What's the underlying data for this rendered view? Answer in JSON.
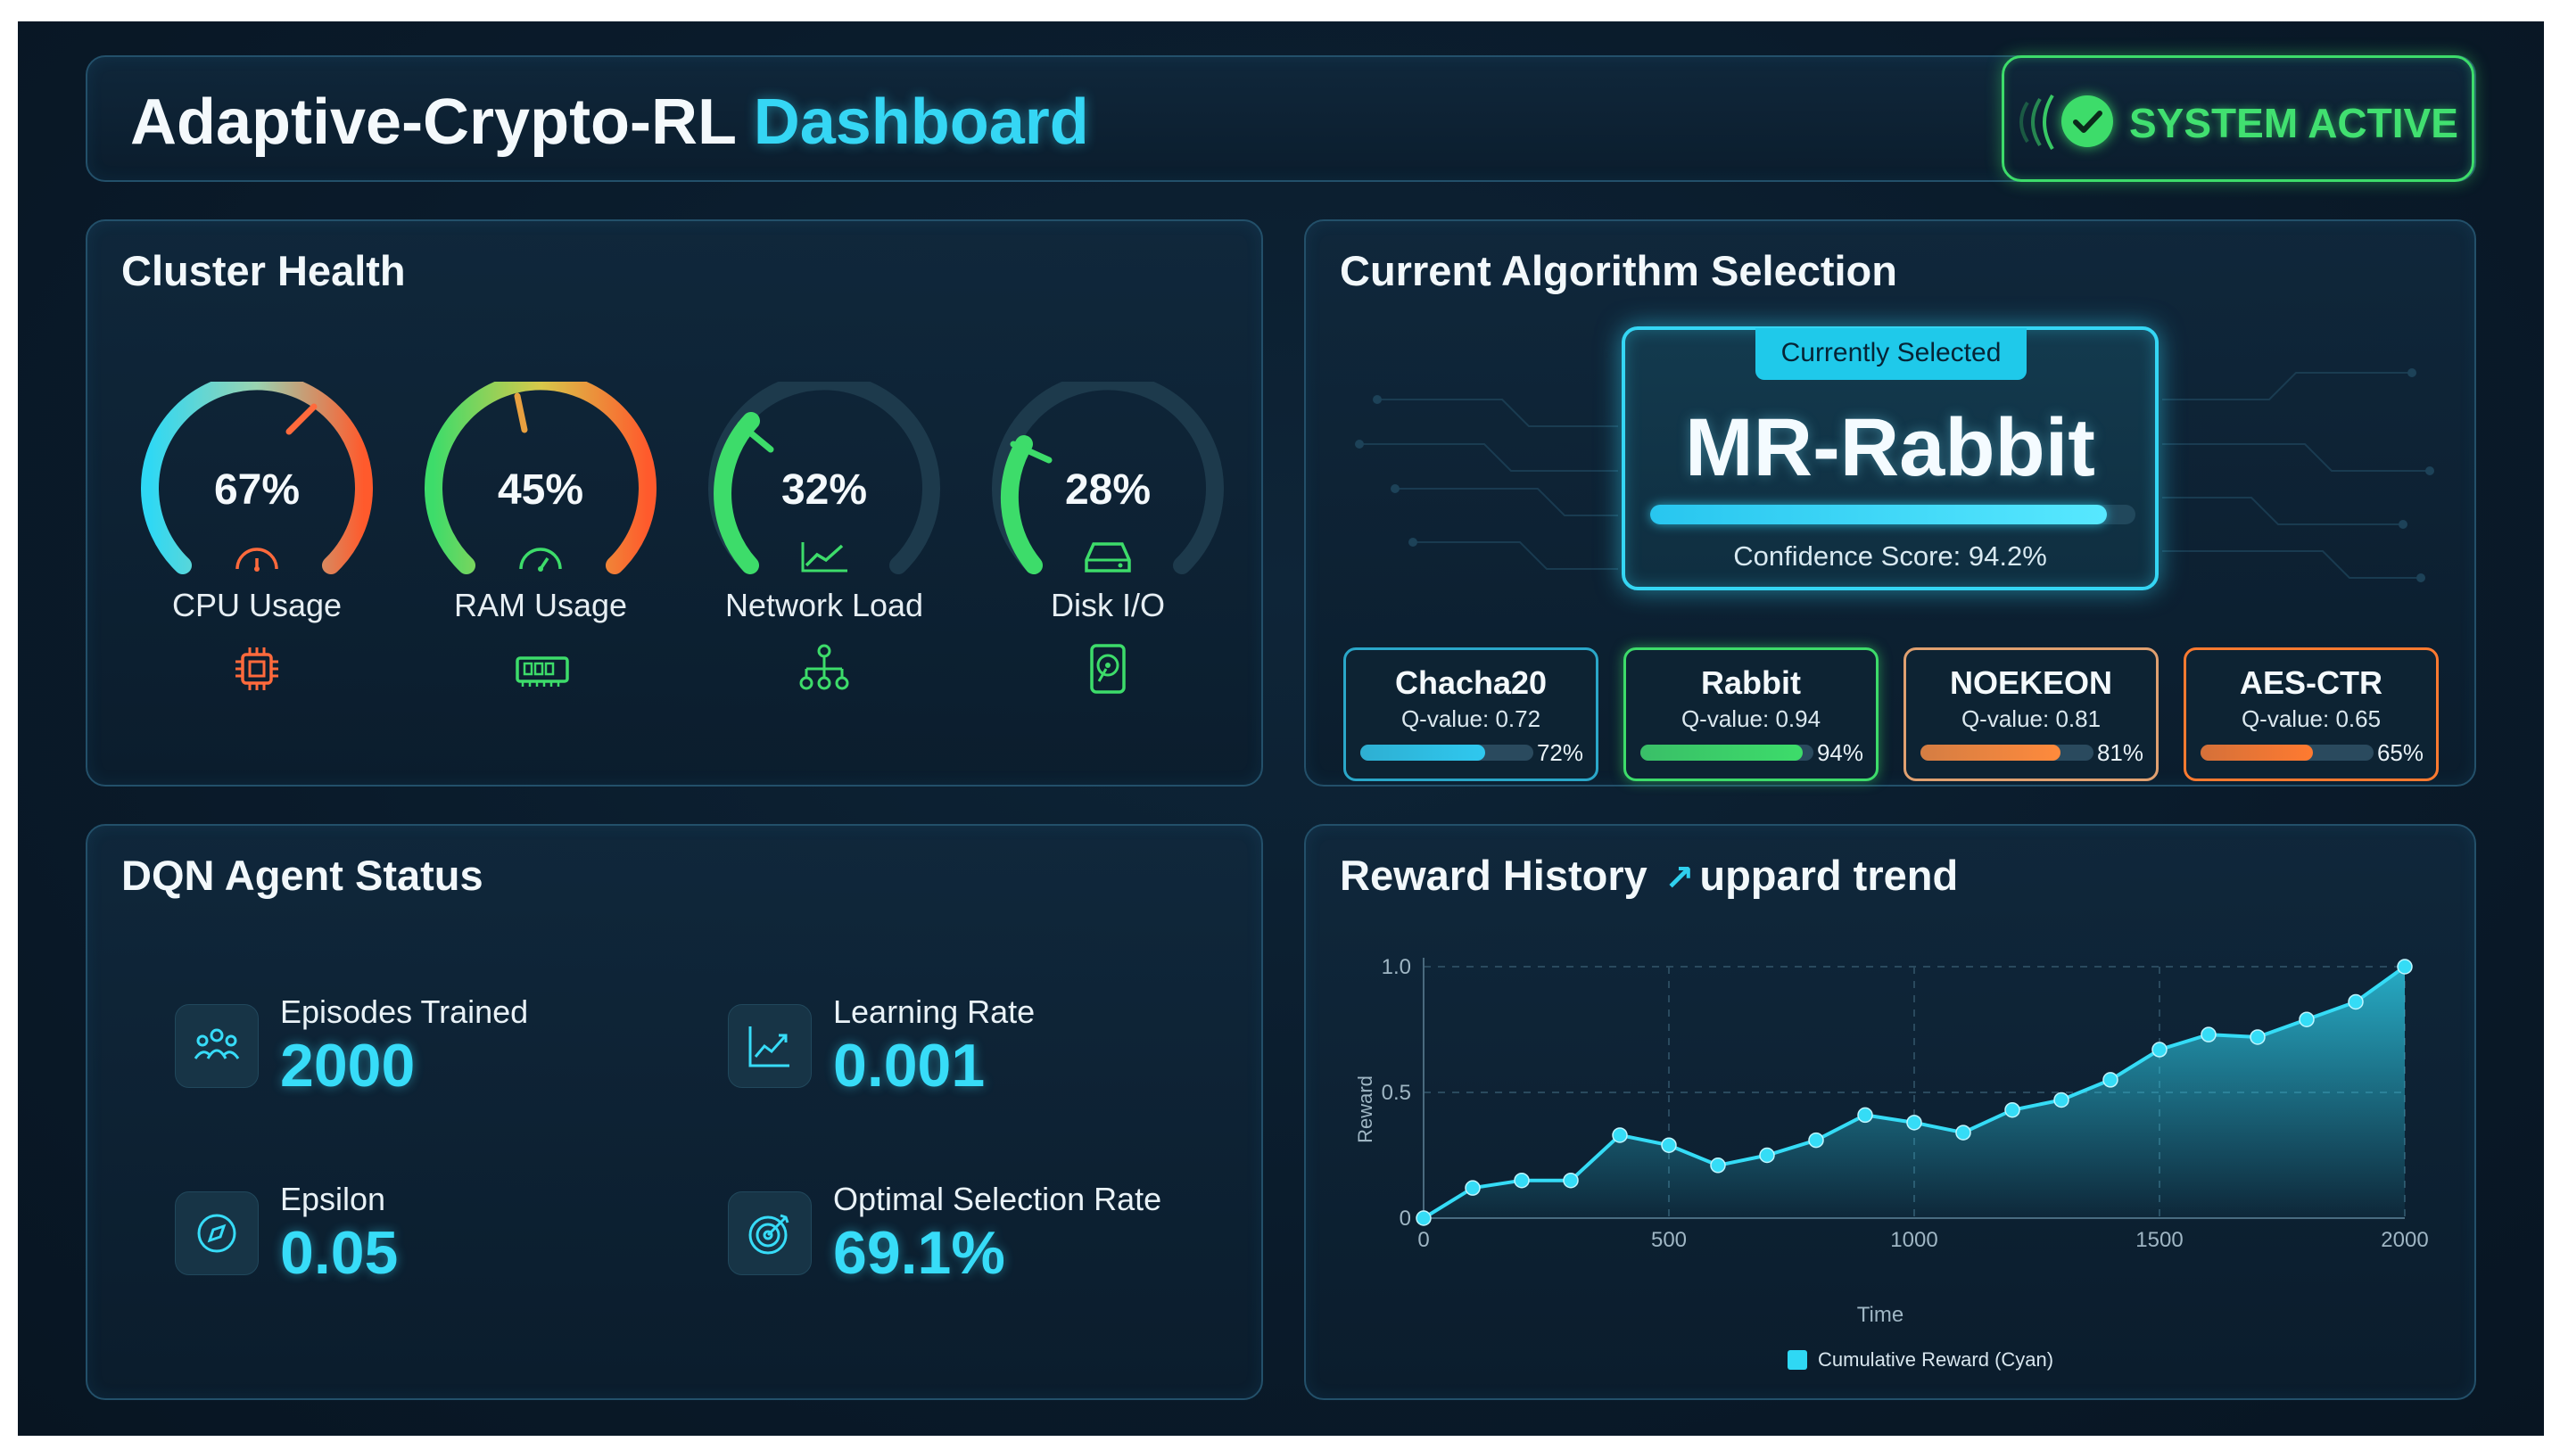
{
  "header": {
    "title_part1": "Adaptive-Crypto-RL",
    "title_part2": "Dashboard",
    "status": "SYSTEM ACTIVE",
    "status_icon": "check-circle-icon",
    "status_color": "#3ddc6a"
  },
  "cluster_health": {
    "title": "Cluster Health",
    "gauges": [
      {
        "label": "CPU Usage",
        "percent_text": "67%",
        "value": 67,
        "icon": "cpu-chip-icon",
        "color": "#ff6a3c"
      },
      {
        "label": "RAM Usage",
        "percent_text": "45%",
        "value": 45,
        "icon": "memory-module-icon",
        "color": "#3ddc6a"
      },
      {
        "label": "Network Load",
        "percent_text": "32%",
        "value": 32,
        "icon": "network-tree-icon",
        "color": "#3ddc6a"
      },
      {
        "label": "Disk I/O",
        "percent_text": "28%",
        "value": 28,
        "icon": "hard-drive-icon",
        "color": "#3ddc6a"
      }
    ]
  },
  "algorithm_selection": {
    "title": "Current Algorithm Selection",
    "selected_tag": "Currently Selected",
    "selected_name": "MR-Rabbit",
    "confidence_text": "Confidence Score: 94.2%",
    "confidence": 94.2,
    "candidates": [
      {
        "name": "Chacha20",
        "q_text": "Q-value: 0.72",
        "percent_text": "72%",
        "percent": 72,
        "color": "#2fc8ef",
        "border": "#2aa7c9"
      },
      {
        "name": "Rabbit",
        "q_text": "Q-value: 0.94",
        "percent_text": "94%",
        "percent": 94,
        "color": "#3ddc6a",
        "border": "#3ddc6a"
      },
      {
        "name": "NOEKEON",
        "q_text": "Q-value: 0.81",
        "percent_text": "81%",
        "percent": 81,
        "color": "#ff8a3c",
        "border": "#e0a070"
      },
      {
        "name": "AES-CTR",
        "q_text": "Q-value: 0.65",
        "percent_text": "65%",
        "percent": 65,
        "color": "#ff7a30",
        "border": "#ff7a30"
      }
    ]
  },
  "dqn_status": {
    "title": "DQN Agent Status",
    "metrics": [
      {
        "label": "Episodes Trained",
        "value": "2000",
        "icon": "agents-group-icon"
      },
      {
        "label": "Learning Rate",
        "value": "0.001",
        "icon": "line-chart-icon"
      },
      {
        "label": "Epsilon",
        "value": "0.05",
        "icon": "compass-icon"
      },
      {
        "label": "Optimal Selection Rate",
        "value": "69.1%",
        "icon": "target-icon"
      }
    ]
  },
  "reward_history": {
    "title": "Reward History",
    "trend_text": "uppard trend",
    "trend_icon": "arrow-up-right-icon"
  },
  "chart_data": {
    "type": "area",
    "title": "Reward History",
    "xlabel": "Time",
    "ylabel": "Reward",
    "xlim": [
      0,
      2000
    ],
    "ylim": [
      0,
      1.0
    ],
    "x_ticks": [
      0,
      500,
      1000,
      1500,
      2000
    ],
    "y_ticks": [
      0,
      0.5,
      1.0
    ],
    "y_tick_labels": [
      "0",
      "0.5",
      "1.0"
    ],
    "grid": true,
    "legend": "bottom-center",
    "series": [
      {
        "name": "Cumulative Reward (Cyan)",
        "color": "#2fd8f4",
        "x": [
          0,
          100,
          200,
          300,
          400,
          500,
          600,
          700,
          800,
          900,
          1000,
          1100,
          1200,
          1300,
          1400,
          1500,
          1600,
          1700,
          1800,
          1900,
          2000
        ],
        "y": [
          0.0,
          0.12,
          0.15,
          0.15,
          0.33,
          0.29,
          0.21,
          0.25,
          0.31,
          0.41,
          0.38,
          0.34,
          0.43,
          0.47,
          0.55,
          0.67,
          0.73,
          0.72,
          0.79,
          0.86,
          1.0
        ]
      }
    ]
  }
}
